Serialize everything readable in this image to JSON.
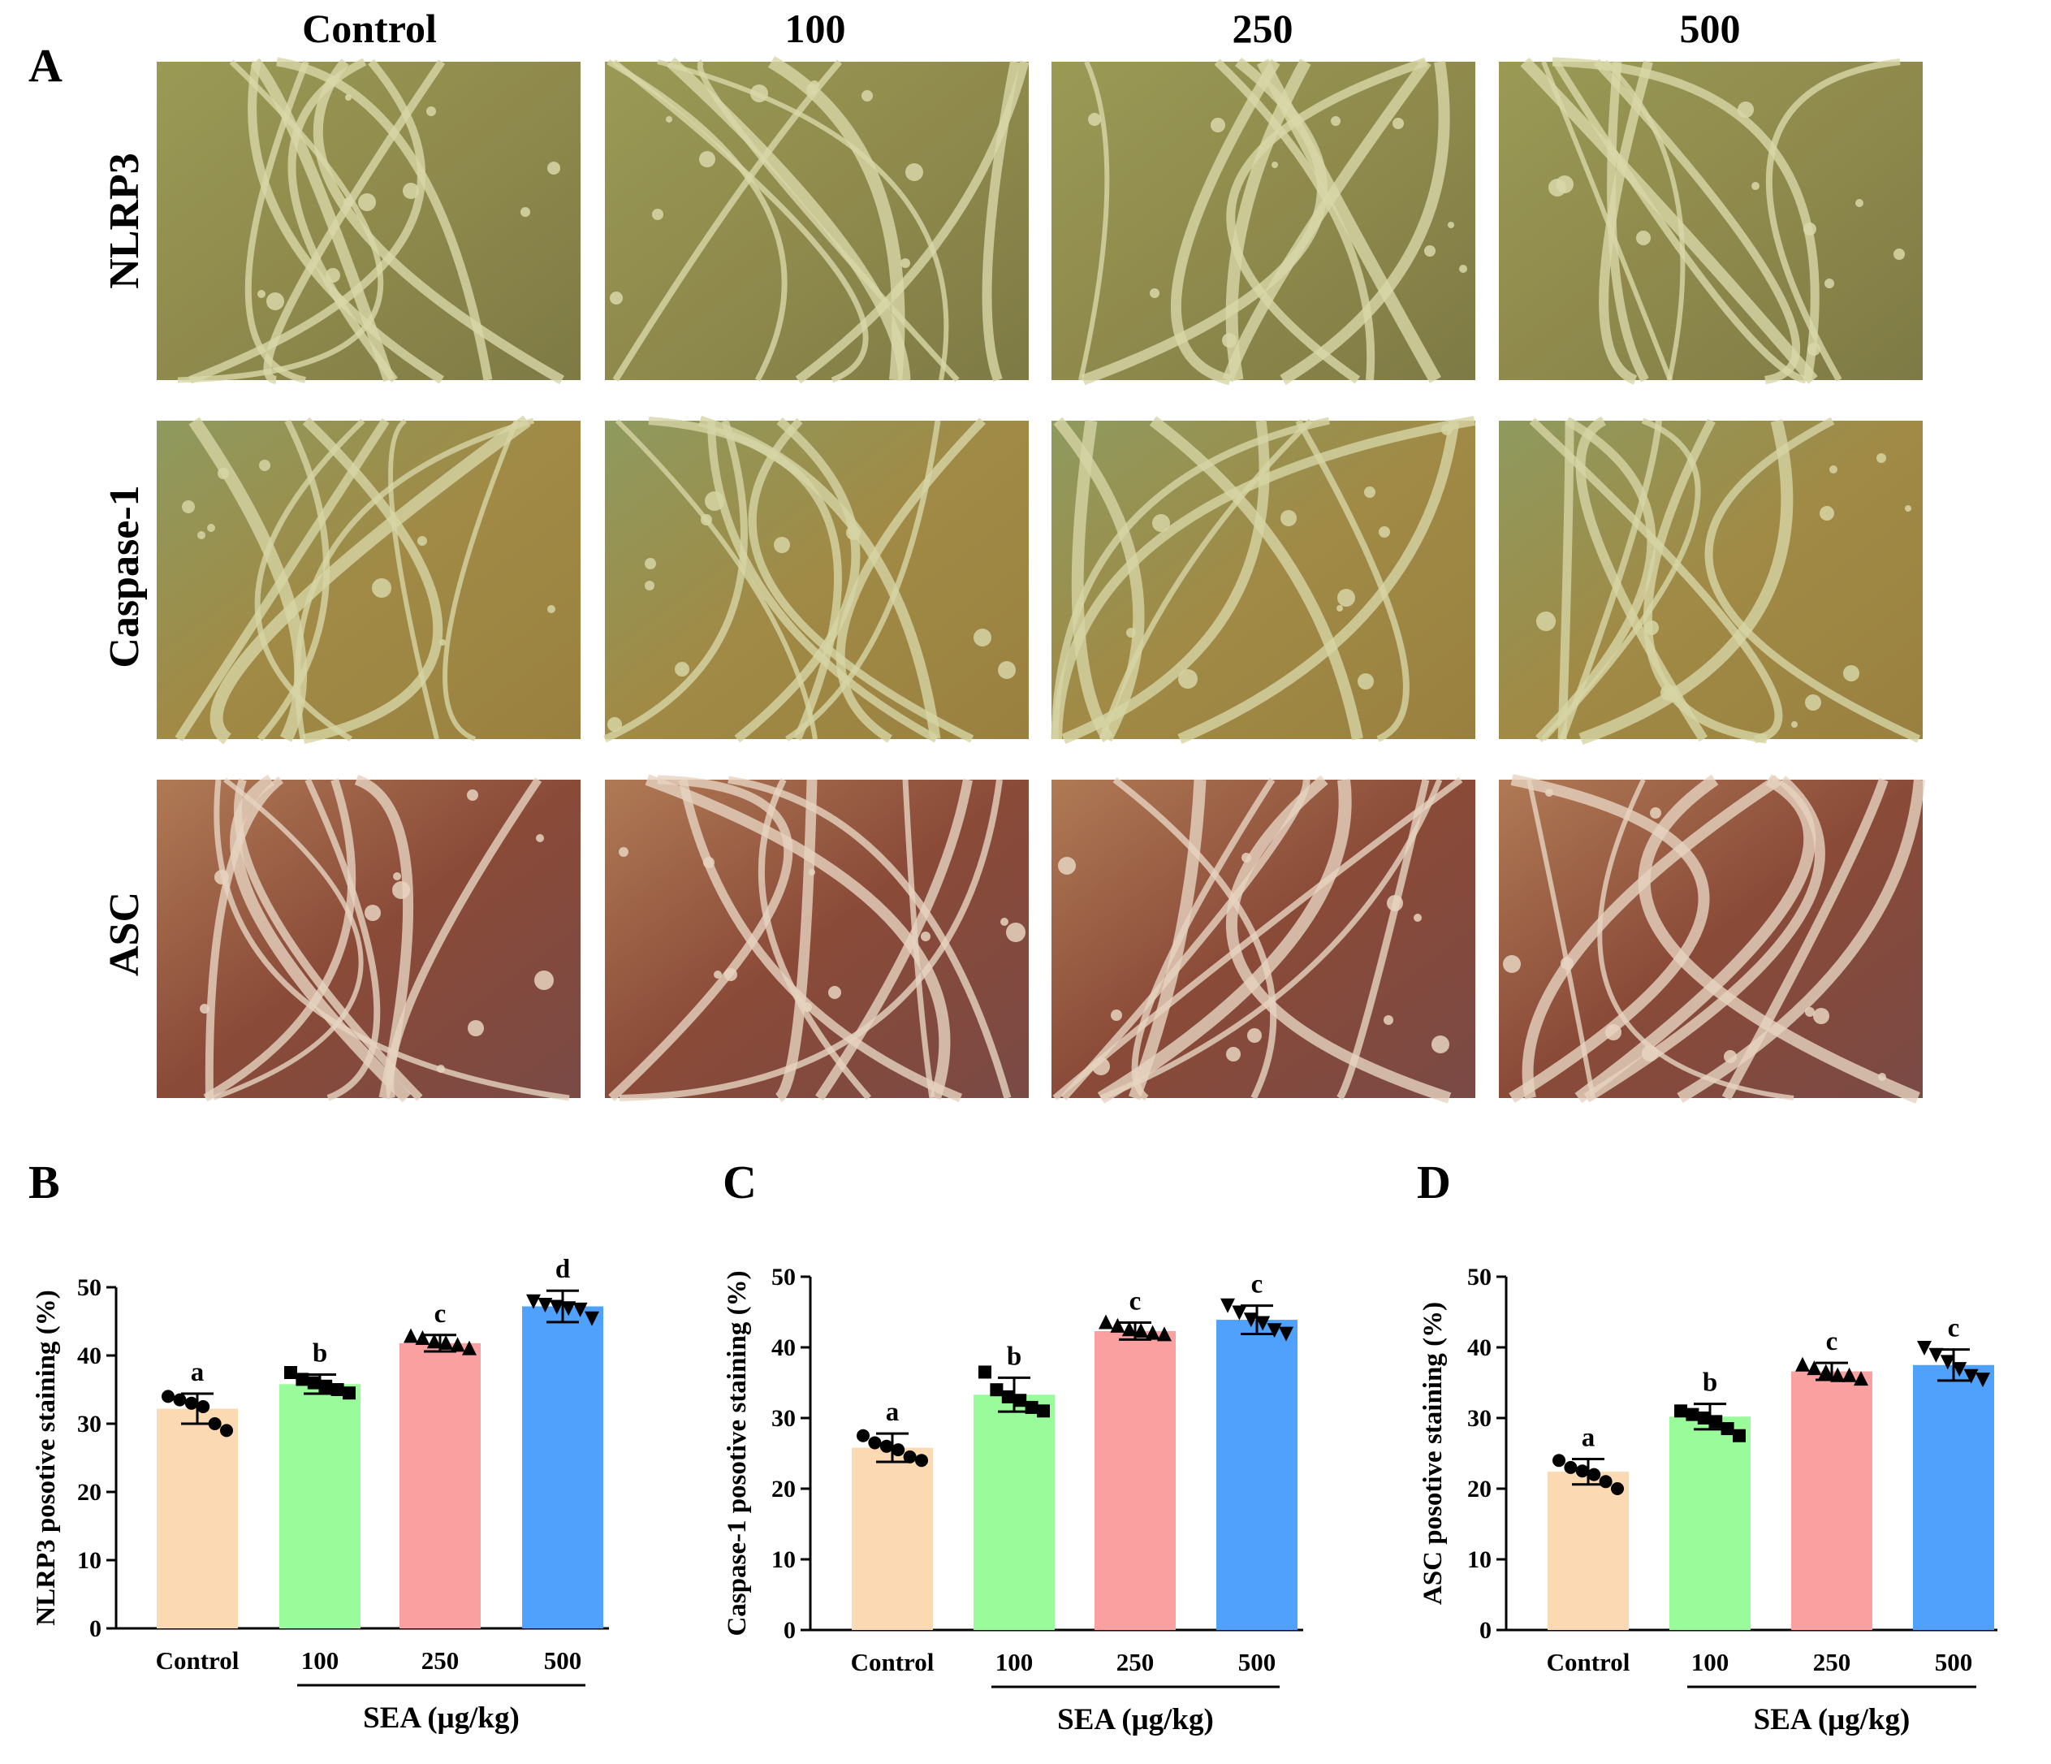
{
  "panel_a": {
    "label": "A",
    "columns": [
      "Control",
      "100",
      "250",
      "500"
    ],
    "rows": [
      "NLRP3",
      "Caspase-1",
      "ASC"
    ]
  },
  "chart_data": [
    {
      "panel": "B",
      "type": "bar",
      "categories": [
        "Control",
        "100",
        "250",
        "500"
      ],
      "values": [
        32.2,
        35.8,
        41.8,
        47.2
      ],
      "errors": [
        2.2,
        1.4,
        1.2,
        2.3
      ],
      "significance": [
        "a",
        "b",
        "c",
        "d"
      ],
      "points": [
        [
          34,
          33.5,
          33,
          32.5,
          30,
          29
        ],
        [
          37.5,
          36.5,
          36,
          35.5,
          35,
          34.5
        ],
        [
          42.8,
          42.5,
          42,
          41.8,
          41.5,
          41
        ],
        [
          48,
          47.5,
          47.2,
          47,
          46.8,
          45.5
        ]
      ],
      "ylabel": "NLRP3 posotive staining (%)",
      "xgroup_label": "SEA (μg/kg)",
      "ylim": [
        0,
        50
      ],
      "yticks": [
        0,
        10,
        20,
        30,
        40,
        50
      ],
      "grid": false,
      "colors": [
        "#FBD9B3",
        "#99FB99",
        "#FAA0A0",
        "#4FA1FB"
      ]
    },
    {
      "panel": "C",
      "type": "bar",
      "categories": [
        "Control",
        "100",
        "250",
        "500"
      ],
      "values": [
        25.8,
        33.3,
        42.3,
        43.9
      ],
      "errors": [
        2.0,
        2.4,
        1.2,
        2.0
      ],
      "significance": [
        "a",
        "b",
        "c",
        "c"
      ],
      "points": [
        [
          27.5,
          26.5,
          26,
          25.5,
          24.5,
          24
        ],
        [
          36.5,
          34,
          33,
          32.5,
          31.5,
          31
        ],
        [
          43.5,
          43,
          42.5,
          42.3,
          42,
          41.8
        ],
        [
          46,
          45,
          44,
          43.5,
          42.5,
          42
        ]
      ],
      "ylabel": "Caspase-1 posotive staining (%)",
      "xgroup_label": "SEA (μg/kg)",
      "ylim": [
        0,
        50
      ],
      "yticks": [
        0,
        10,
        20,
        30,
        40,
        50
      ],
      "grid": false,
      "colors": [
        "#FBD9B3",
        "#99FB99",
        "#FAA0A0",
        "#4FA1FB"
      ]
    },
    {
      "panel": "D",
      "type": "bar",
      "categories": [
        "Control",
        "100",
        "250",
        "500"
      ],
      "values": [
        22.4,
        30.2,
        36.6,
        37.5
      ],
      "errors": [
        1.8,
        1.8,
        1.2,
        2.2
      ],
      "significance": [
        "a",
        "b",
        "c",
        "c"
      ],
      "points": [
        [
          24,
          23,
          22.5,
          22,
          21,
          20
        ],
        [
          31,
          30.5,
          30,
          29.5,
          28.5,
          27.5
        ],
        [
          37.5,
          37,
          36.5,
          36,
          36,
          35.5
        ],
        [
          40,
          39,
          38,
          37,
          36,
          35.5
        ]
      ],
      "ylabel": "ASC posotive staining (%)",
      "xgroup_label": "SEA (μg/kg)",
      "ylim": [
        0,
        50
      ],
      "yticks": [
        0,
        10,
        20,
        30,
        40,
        50
      ],
      "grid": false,
      "colors": [
        "#FBD9B3",
        "#99FB99",
        "#FAA0A0",
        "#4FA1FB"
      ]
    }
  ]
}
